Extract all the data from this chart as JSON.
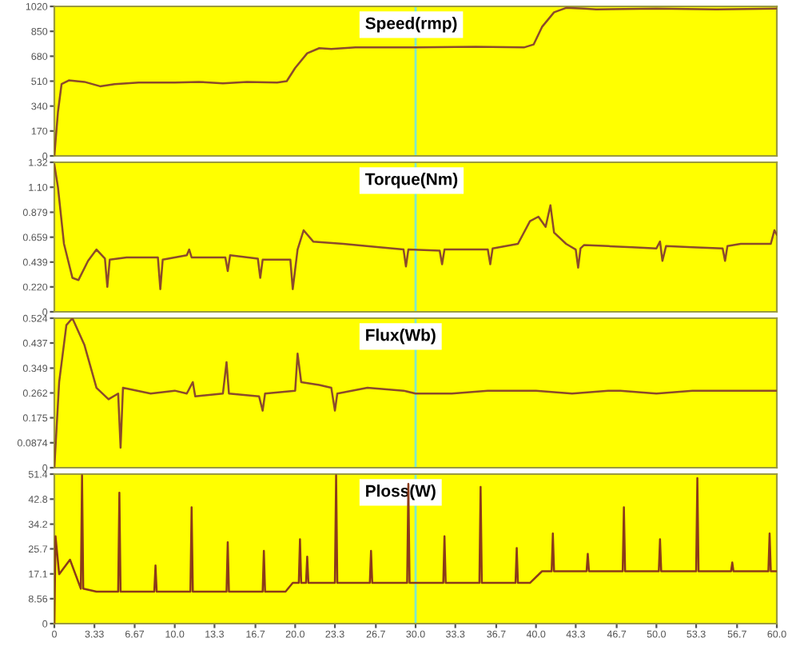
{
  "chart_data": [
    {
      "type": "line",
      "title": "Speed(rmp)",
      "xlim": [
        0,
        60
      ],
      "ylim": [
        0,
        1020
      ],
      "yticks": [
        0,
        170,
        340,
        510,
        680,
        850,
        1020
      ],
      "tick_labels": "y",
      "grid": false,
      "ref_lines": [
        {
          "axis": "x",
          "value": 30,
          "color": "#80e8c8"
        }
      ],
      "series": [
        {
          "color": "#8b4a2b",
          "x": [
            0,
            0.3,
            0.6,
            1.2,
            2.5,
            3.8,
            5,
            7,
            10,
            12,
            14,
            16,
            18.5,
            19.3,
            20,
            21,
            22,
            23,
            25,
            30,
            35,
            39,
            39.8,
            40.5,
            41.5,
            42.5,
            44,
            45,
            50,
            55,
            60
          ],
          "values": [
            0,
            300,
            490,
            515,
            505,
            475,
            490,
            500,
            500,
            505,
            495,
            505,
            500,
            510,
            600,
            700,
            735,
            730,
            740,
            740,
            745,
            740,
            760,
            880,
            980,
            1010,
            1005,
            1000,
            1005,
            1000,
            1005
          ]
        }
      ]
    },
    {
      "type": "line",
      "title": "Torque(Nm)",
      "xlim": [
        0,
        60
      ],
      "ylim": [
        0,
        1.32
      ],
      "yticks": [
        0,
        {
          "value": 0.22,
          "label": "0.220"
        },
        0.439,
        0.659,
        0.879,
        {
          "value": 1.1,
          "label": "1.10"
        },
        1.32
      ],
      "tick_labels": "y",
      "grid": false,
      "ref_lines": [
        {
          "axis": "x",
          "value": 30,
          "color": "#80e8c8"
        }
      ],
      "series": [
        {
          "color": "#8b4a2b",
          "x": [
            0,
            0.3,
            0.8,
            1.5,
            2,
            2.8,
            3.5,
            4.2,
            4.4,
            4.6,
            6,
            8.6,
            8.8,
            9,
            11,
            11.2,
            11.4,
            14.2,
            14.4,
            14.6,
            16.9,
            17.1,
            17.3,
            19.6,
            19.8,
            20.2,
            20.7,
            21.5,
            24,
            27,
            29,
            29.2,
            29.4,
            32,
            32.2,
            32.4,
            36,
            36.2,
            36.4,
            38.5,
            39.5,
            40.2,
            40.8,
            41.2,
            41.5,
            42.5,
            43.3,
            43.5,
            43.7,
            44,
            46,
            48,
            50,
            50.3,
            50.5,
            50.8,
            53,
            55.5,
            55.7,
            55.9,
            57,
            59.5,
            59.8,
            60
          ],
          "values": [
            1.3,
            1.1,
            0.6,
            0.3,
            0.28,
            0.45,
            0.55,
            0.47,
            0.22,
            0.46,
            0.48,
            0.48,
            0.2,
            0.46,
            0.5,
            0.55,
            0.48,
            0.48,
            0.36,
            0.5,
            0.47,
            0.3,
            0.46,
            0.46,
            0.2,
            0.55,
            0.72,
            0.62,
            0.6,
            0.57,
            0.55,
            0.4,
            0.55,
            0.54,
            0.42,
            0.55,
            0.55,
            0.42,
            0.56,
            0.6,
            0.8,
            0.84,
            0.75,
            0.94,
            0.7,
            0.6,
            0.55,
            0.39,
            0.56,
            0.59,
            0.58,
            0.57,
            0.56,
            0.62,
            0.45,
            0.58,
            0.57,
            0.56,
            0.45,
            0.58,
            0.6,
            0.6,
            0.72,
            0.68
          ]
        }
      ]
    },
    {
      "type": "line",
      "title": "Flux(Wb)",
      "xlim": [
        0,
        60
      ],
      "ylim": [
        0,
        0.524
      ],
      "yticks": [
        0,
        0.0874,
        0.175,
        0.262,
        0.349,
        0.437,
        0.524
      ],
      "tick_labels": "y",
      "grid": false,
      "ref_lines": [
        {
          "axis": "x",
          "value": 30,
          "color": "#80e8c8"
        }
      ],
      "series": [
        {
          "color": "#8b4a2b",
          "x": [
            0,
            0.4,
            1,
            1.5,
            2.5,
            3.5,
            4.5,
            5.3,
            5.5,
            5.7,
            8,
            10,
            11,
            11.5,
            11.7,
            14,
            14.3,
            14.5,
            17,
            17.3,
            17.5,
            20,
            20.2,
            20.5,
            22,
            23,
            23.3,
            23.5,
            26,
            29,
            30,
            33,
            36,
            40,
            43,
            46,
            47,
            50,
            53,
            56,
            60
          ],
          "values": [
            0,
            0.3,
            0.5,
            0.524,
            0.43,
            0.28,
            0.24,
            0.26,
            0.07,
            0.28,
            0.26,
            0.27,
            0.26,
            0.3,
            0.25,
            0.26,
            0.37,
            0.26,
            0.25,
            0.2,
            0.26,
            0.27,
            0.4,
            0.3,
            0.29,
            0.28,
            0.2,
            0.26,
            0.28,
            0.27,
            0.26,
            0.26,
            0.27,
            0.27,
            0.26,
            0.27,
            0.27,
            0.26,
            0.27,
            0.27,
            0.27
          ]
        }
      ]
    },
    {
      "type": "line",
      "title": "Ploss(W)",
      "xlim": [
        0,
        60
      ],
      "ylim": [
        0,
        51.4
      ],
      "yticks": [
        0,
        8.56,
        17.1,
        25.7,
        34.2,
        42.8,
        51.4
      ],
      "xticks": [
        0,
        3.33,
        6.67,
        {
          "value": 10,
          "label": "10.0"
        },
        13.3,
        16.7,
        {
          "value": 20,
          "label": "20.0"
        },
        23.3,
        26.7,
        {
          "value": 30,
          "label": "30.0"
        },
        33.3,
        36.7,
        {
          "value": 40,
          "label": "40.0"
        },
        43.3,
        46.7,
        {
          "value": 50,
          "label": "50.0"
        },
        53.3,
        56.7,
        {
          "value": 60,
          "label": "60.0"
        }
      ],
      "grid": false,
      "ref_lines": [
        {
          "axis": "x",
          "value": 30,
          "color": "#80e8c8"
        }
      ],
      "series": [
        {
          "color": "#8b3a1a",
          "x": [
            0,
            0.1,
            0.4,
            1.3,
            2.2,
            2.3,
            2.4,
            3.5,
            5.3,
            5.4,
            5.5,
            8.3,
            8.4,
            8.5,
            11.3,
            11.4,
            11.5,
            14.3,
            14.4,
            14.5,
            17.3,
            17.4,
            17.5,
            19.2,
            19.8,
            20.3,
            20.4,
            20.5,
            20.9,
            21,
            21.1,
            23.3,
            23.4,
            23.5,
            26.2,
            26.3,
            26.4,
            29.3,
            29.4,
            29.5,
            32.3,
            32.4,
            32.5,
            35.3,
            35.4,
            35.5,
            38.3,
            38.4,
            38.5,
            39.5,
            40.5,
            41.3,
            41.4,
            41.5,
            44.2,
            44.3,
            44.4,
            47.2,
            47.3,
            47.4,
            50.2,
            50.3,
            50.4,
            53.3,
            53.4,
            53.5,
            56.2,
            56.3,
            56.4,
            59.3,
            59.4,
            59.5,
            60
          ],
          "values": [
            0,
            30,
            17,
            22,
            12,
            51,
            12,
            11,
            11,
            45,
            11,
            11,
            20,
            11,
            11,
            40,
            11,
            11,
            28,
            11,
            11,
            25,
            11,
            11,
            14,
            14,
            29,
            14,
            14,
            23,
            14,
            14,
            51,
            14,
            14,
            25,
            14,
            14,
            48,
            14,
            14,
            30,
            14,
            14,
            47,
            14,
            14,
            26,
            14,
            14,
            18,
            18,
            31,
            18,
            18,
            24,
            18,
            18,
            40,
            18,
            18,
            29,
            18,
            18,
            50,
            18,
            18,
            21,
            18,
            18,
            31,
            18,
            18
          ]
        }
      ]
    }
  ]
}
